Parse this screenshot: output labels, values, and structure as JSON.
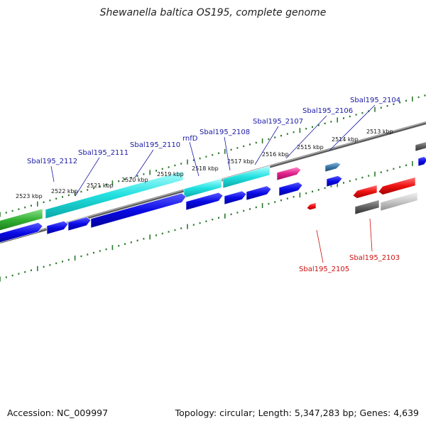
{
  "title": "Shewanella baltica OS195, complete genome",
  "footer": {
    "accession": "Accession: NC_009997",
    "summary": "Topology: circular; Length: 5,347,283 bp; Genes: 4,639"
  },
  "colors": {
    "label_forward": "#1a1aa6",
    "label_reverse": "#cc1111",
    "tick": "#2a7a2a",
    "backbone": "#888888"
  },
  "kbp_labels": [
    "2523 kbp",
    "2522 kbp",
    "2521 kbp",
    "2520 kbp",
    "2519 kbp",
    "2518 kbp",
    "2517 kbp",
    "2516 kbp",
    "2515 kbp",
    "2514 kbp",
    "2513 kbp"
  ],
  "gene_labels_forward": [
    "Sbal195_2112",
    "Sbal195_2111",
    "Sbal195_2110",
    "rnfD",
    "Sbal195_2108",
    "Sbal195_2107",
    "Sbal195_2106",
    "Sbal195_2104"
  ],
  "gene_labels_reverse": [
    "Sbal195_2105",
    "Sbal195_2103"
  ]
}
